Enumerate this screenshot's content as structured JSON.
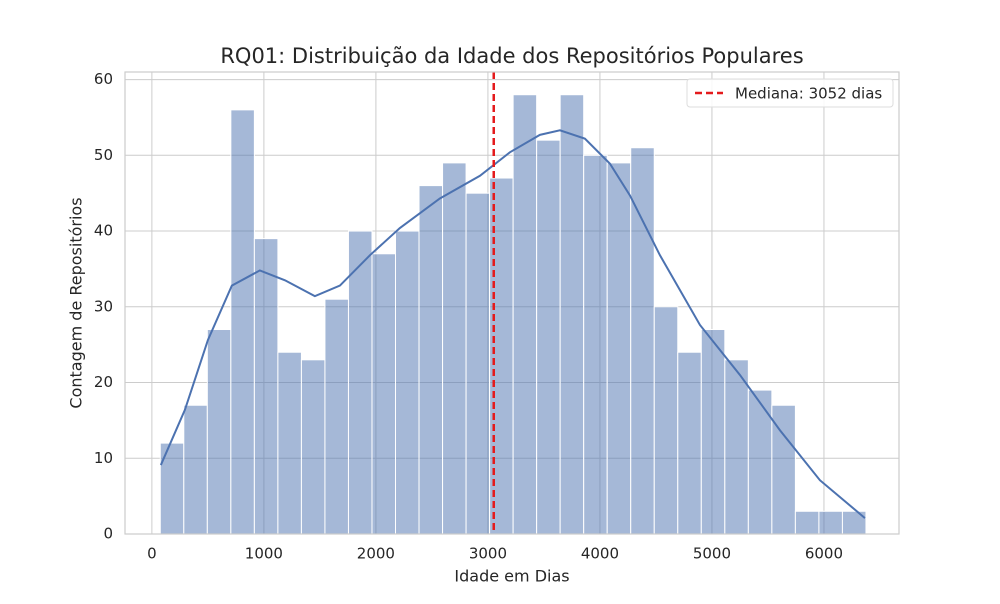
{
  "chart_data": {
    "type": "histogram",
    "title": "RQ01: Distribuição da Idade dos Repositórios Populares",
    "xlabel": "Idade em Dias",
    "ylabel": "Contagem de Repositórios",
    "bins": [
      75,
      285,
      495,
      705,
      915,
      1125,
      1335,
      1545,
      1755,
      1965,
      2175,
      2385,
      2595,
      2805,
      3015,
      3225,
      3435,
      3645,
      3855,
      4065,
      4275,
      4485,
      4695,
      4905,
      5115,
      5325,
      5535,
      5745,
      5955,
      6165,
      6375
    ],
    "counts": [
      12,
      17,
      27,
      56,
      39,
      24,
      23,
      31,
      40,
      37,
      40,
      46,
      49,
      45,
      47,
      58,
      52,
      58,
      50,
      49,
      51,
      30,
      24,
      27,
      23,
      19,
      17,
      3,
      3,
      3
    ],
    "color": "#4c72b0",
    "kde": {
      "color": "#4c72b0",
      "x": [
        80,
        295,
        500,
        714,
        964,
        1188,
        1455,
        1679,
        1946,
        2214,
        2571,
        2929,
        3196,
        3464,
        3643,
        3866,
        4089,
        4268,
        4536,
        4893,
        5250,
        5607,
        5964,
        6366
      ],
      "values": [
        9.1,
        16.4,
        25.6,
        32.8,
        34.8,
        33.5,
        31.4,
        32.8,
        36.8,
        40.4,
        44.3,
        47.3,
        50.4,
        52.7,
        53.3,
        52.2,
        48.9,
        44.7,
        36.8,
        27.6,
        21,
        13.7,
        7.1,
        2.1
      ]
    },
    "median_line": {
      "name": "Mediana: 3052 dias",
      "value": 3052,
      "color": "#e41a1c"
    },
    "xlim": [
      -240,
      6670
    ],
    "xticks": [
      0,
      1000,
      2000,
      3000,
      4000,
      5000,
      6000
    ],
    "ylim": [
      0,
      61
    ],
    "yticks": [
      0,
      10,
      20,
      30,
      40,
      50,
      60
    ],
    "grid": true,
    "legend": "upper right"
  }
}
